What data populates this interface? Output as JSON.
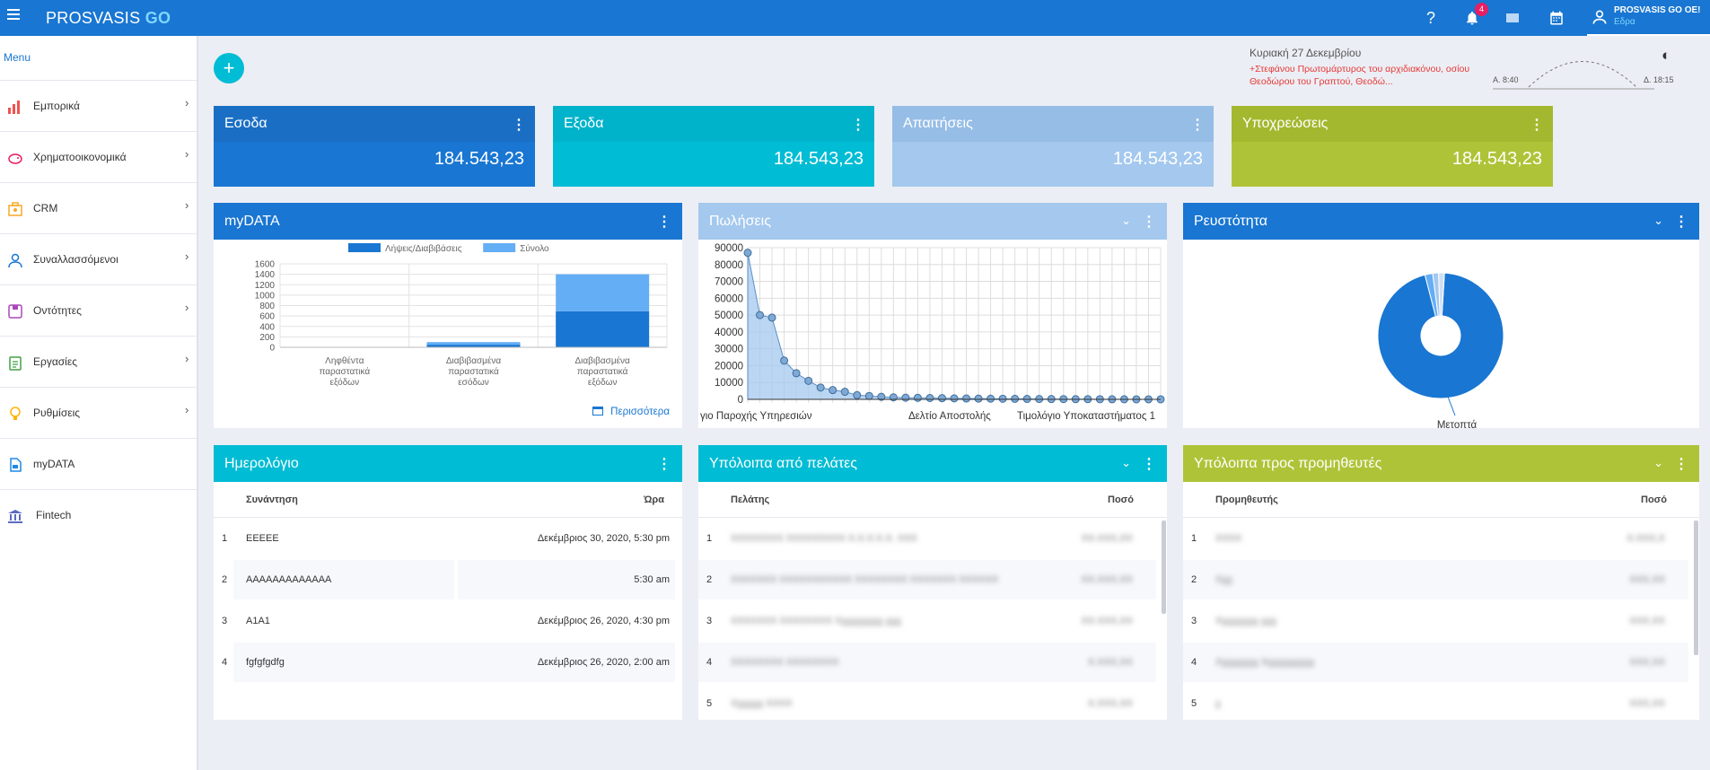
{
  "app": {
    "brand_main": "PROSVASIS",
    "brand_go": "GO",
    "notification_count": "4",
    "user_name": "PROSVASIS GO OE!",
    "user_location": "Εδρα"
  },
  "sidebar": {
    "title": "Menu",
    "items": [
      {
        "label": "Εμπορικά",
        "icon": "bar-chart-icon"
      },
      {
        "label": "Χρηματοοικονομικά",
        "icon": "piggy-bank-icon"
      },
      {
        "label": "CRM",
        "icon": "briefcase-icon"
      },
      {
        "label": "Συναλλασσόμενοι",
        "icon": "person-icon"
      },
      {
        "label": "Οντότητες",
        "icon": "box-icon"
      },
      {
        "label": "Εργασίες",
        "icon": "clipboard-icon"
      },
      {
        "label": "Ρυθμίσεις",
        "icon": "lightbulb-icon"
      },
      {
        "label": "myDATA",
        "icon": "document-icon"
      },
      {
        "label": "Fintech",
        "icon": "bank-icon"
      }
    ]
  },
  "header_info": {
    "date": "Κυριακή 27 Δεκεμβρίου",
    "saint": "+Στεφάνου Πρωτομάρτυρος του αρχιδιακόνου, οσίου Θεοδώρου του Γραπτού, Θεοδώ...",
    "sunrise": "Α. 8:40",
    "sunset": "Δ. 18:15"
  },
  "kpis": [
    {
      "title": "Εσοδα",
      "value": "184.543,23",
      "color": "#1976d2"
    },
    {
      "title": "Εξοδα",
      "value": "184.543,23",
      "color": "#00bcd4"
    },
    {
      "title": "Απαιτήσεις",
      "value": "184.543,23",
      "color": "#a4c8ee"
    },
    {
      "title": "Υποχρεώσεις",
      "value": "184.543,23",
      "color": "#afc338"
    }
  ],
  "mydata_card": {
    "title": "myDATA",
    "more_link": "Περισσότερα",
    "chart_data": {
      "type": "bar",
      "stacked": true,
      "categories": [
        "Ληφθέντα παραστατικά εξόδων",
        "Διαβιβασμένα παραστατικά εσόδων",
        "Διαβιβασμένα παραστατικά εξόδων"
      ],
      "category_lines": [
        [
          "Ληφθέντα",
          "παραστατικά",
          "εξόδων"
        ],
        [
          "Διαβιβασμένα",
          "παραστατικά",
          "εσόδων"
        ],
        [
          "Διαβιβασμένα",
          "παραστατικά",
          "εξόδων"
        ]
      ],
      "series": [
        {
          "name": "Λήψεις/Διαβιβάσεις",
          "values": [
            0,
            50,
            690
          ],
          "color": "#1976d2"
        },
        {
          "name": "Σύνολο",
          "values": [
            0,
            50,
            710
          ],
          "color": "#64aef5"
        }
      ],
      "ylim": [
        0,
        1600
      ],
      "yticks": [
        0,
        200,
        400,
        600,
        800,
        1000,
        1200,
        1400,
        1600
      ],
      "legend": "top"
    }
  },
  "sales_card": {
    "title": "Πωλήσεις",
    "chart_data": {
      "type": "area",
      "values": [
        87000,
        50000,
        48500,
        23000,
        15500,
        11000,
        7000,
        5500,
        4500,
        2500,
        2000,
        1500,
        1200,
        1000,
        900,
        800,
        700,
        600,
        500,
        450,
        400,
        350,
        300,
        250,
        200,
        180,
        150,
        120,
        100,
        80,
        60,
        40,
        30,
        20,
        10
      ],
      "x_tick_labels": [
        "γιο Παροχής Υπηρεσιών",
        "Δελτίο Αποστολής",
        "Τιμολόγιο Υποκαταστήματος 1"
      ],
      "ylim": [
        0,
        90000
      ],
      "yticks": [
        0,
        10000,
        20000,
        30000,
        40000,
        50000,
        60000,
        70000,
        80000,
        90000
      ],
      "grid": true,
      "color": "#a4c8ee"
    }
  },
  "liquidity_card": {
    "title": "Ρευστότητα",
    "chart_data": {
      "type": "pie",
      "donut": true,
      "slices": [
        {
          "label": "Μετοπτά",
          "value": 95,
          "color": "#1976d2"
        },
        {
          "label": "",
          "value": 2,
          "color": "#64aef5"
        },
        {
          "label": "",
          "value": 1.5,
          "color": "#a4c8ee"
        },
        {
          "label": "",
          "value": 1.5,
          "color": "#cfe0f5"
        }
      ]
    }
  },
  "calendar_card": {
    "title": "Ημερολόγιο",
    "col_event": "Συνάντηση",
    "col_time": "Ώρα",
    "rows": [
      {
        "n": "1",
        "event": "EEEEE",
        "time": "Δεκέμβριος 30, 2020, 5:30 pm"
      },
      {
        "n": "2",
        "event": "AAAAAAAAAAAAA",
        "time": "5:30 am"
      },
      {
        "n": "3",
        "event": "A1A1",
        "time": "Δεκέμβριος 26, 2020, 4:30 pm"
      },
      {
        "n": "4",
        "event": "fgfgfgdfg",
        "time": "Δεκέμβριος 26, 2020, 2:00 am"
      }
    ]
  },
  "customers_card": {
    "title": "Υπόλοιπα από πελάτες",
    "col_name": "Πελάτης",
    "col_amount": "Ποσό",
    "rows": [
      {
        "n": "1",
        "name": "ΧΧΧΧΧΧΧΧ ΧΧΧΧΧΧΧΧΧ Χ.Χ.Χ.Χ.Χ. ΧΧΧ",
        "amount": "ΧΧ.ΧΧΧ,ΧΧ"
      },
      {
        "n": "2",
        "name": "ΧΧΧΧΧΧΧ ΧΧΧΧΧΧΧΧΧΧΧ ΧΧΧΧΧΧΧΧ ΧΧΧΧΧΧΧ ΧΧΧΧΧΧ",
        "amount": "ΧΧ.ΧΧΧ,ΧΧ"
      },
      {
        "n": "3",
        "name": "ΧΧΧΧΧΧΧ ΧΧΧΧΧΧΧΧ Χχχχχχχχχ χχχ",
        "amount": "ΧΧ.ΧΧΧ,ΧΧ"
      },
      {
        "n": "4",
        "name": "ΧΧΧΧΧΧΧΧ ΧΧΧΧΧΧΧΧ",
        "amount": "Χ.ΧΧΧ,ΧΧ"
      },
      {
        "n": "5",
        "name": "Χχχχχχ ΧΧΧΧ",
        "amount": "Χ.ΧΧΧ,ΧΧ"
      }
    ]
  },
  "suppliers_card": {
    "title": "Υπόλοιπα προς προμηθευτές",
    "col_name": "Προμηθευτής",
    "col_amount": "Ποσό",
    "rows": [
      {
        "n": "1",
        "name": "ΧΧΧΧ",
        "amount": "Χ.ΧΧΧ,Χ"
      },
      {
        "n": "2",
        "name": "Χχχ",
        "amount": "ΧΧΧ,ΧΧ"
      },
      {
        "n": "3",
        "name": "Χχχχχχχχ χχχ",
        "amount": "ΧΧΧ,ΧΧ"
      },
      {
        "n": "4",
        "name": "Χχχχχχχχ Χχχχχχχχχχ",
        "amount": "ΧΧΧ,ΧΧ"
      },
      {
        "n": "5",
        "name": "χ",
        "amount": "ΧΧΧ,ΧΧ"
      }
    ]
  }
}
